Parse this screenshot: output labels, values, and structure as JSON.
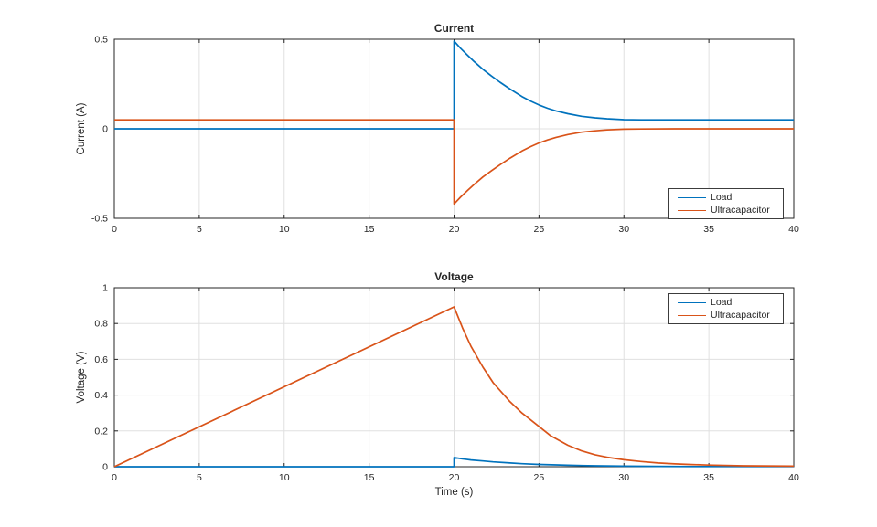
{
  "figure": {
    "background": "#ffffff"
  },
  "colors": {
    "load": "#0072BD",
    "ultracapacitor": "#D95319",
    "grid": "#e0e0e0",
    "axis": "#262626",
    "text": "#262626",
    "legend_border": "#3c3c3c"
  },
  "legend_labels": {
    "load": "Load",
    "ultracapacitor": "Ultracapacitor"
  },
  "xlabel": "Time (s)",
  "chart_data": [
    {
      "type": "line",
      "title": "Current",
      "xlabel": "",
      "ylabel": "Current (A)",
      "xlim": [
        0,
        40
      ],
      "ylim": [
        -0.5,
        0.5
      ],
      "xticks": [
        0,
        5,
        10,
        15,
        20,
        25,
        30,
        35,
        40
      ],
      "xtick_labels": [
        "0",
        "5",
        "10",
        "15",
        "20",
        "25",
        "30",
        "35",
        "40"
      ],
      "yticks": [
        -0.5,
        0,
        0.5
      ],
      "ytick_labels": [
        "-0.5",
        "0",
        "0.5"
      ],
      "grid": true,
      "legend_position": "bottom-right",
      "series": [
        {
          "name": "Load",
          "color": "#0072BD",
          "points": [
            [
              0,
              0
            ],
            [
              20,
              0
            ],
            [
              20,
              0.49
            ],
            [
              20.4,
              0.448
            ],
            [
              20.8,
              0.41
            ],
            [
              21.2,
              0.374
            ],
            [
              21.7,
              0.332
            ],
            [
              22.2,
              0.295
            ],
            [
              22.7,
              0.26
            ],
            [
              23.3,
              0.222
            ],
            [
              24,
              0.18
            ],
            [
              24.5,
              0.155
            ],
            [
              25,
              0.133
            ],
            [
              25.5,
              0.115
            ],
            [
              26,
              0.1
            ],
            [
              26.7,
              0.084
            ],
            [
              27.5,
              0.07
            ],
            [
              28.3,
              0.061
            ],
            [
              29,
              0.056
            ],
            [
              30,
              0.051
            ],
            [
              31,
              0.05
            ],
            [
              33,
              0.05
            ],
            [
              40,
              0.05
            ]
          ]
        },
        {
          "name": "Ultracapacitor",
          "color": "#D95319",
          "points": [
            [
              0,
              0.05
            ],
            [
              20,
              0.05
            ],
            [
              20,
              -0.42
            ],
            [
              20.4,
              -0.38
            ],
            [
              20.8,
              -0.344
            ],
            [
              21.2,
              -0.309
            ],
            [
              21.7,
              -0.269
            ],
            [
              22.2,
              -0.234
            ],
            [
              22.7,
              -0.201
            ],
            [
              23.3,
              -0.164
            ],
            [
              24,
              -0.124
            ],
            [
              24.5,
              -0.1
            ],
            [
              25,
              -0.079
            ],
            [
              25.5,
              -0.062
            ],
            [
              26,
              -0.048
            ],
            [
              26.7,
              -0.032
            ],
            [
              27.5,
              -0.019
            ],
            [
              28.3,
              -0.011
            ],
            [
              29,
              -0.006
            ],
            [
              30,
              -0.002
            ],
            [
              31,
              -0.001
            ],
            [
              33,
              0
            ],
            [
              40,
              0
            ]
          ]
        }
      ]
    },
    {
      "type": "line",
      "title": "Voltage",
      "xlabel": "Time (s)",
      "ylabel": "Voltage (V)",
      "xlim": [
        0,
        40
      ],
      "ylim": [
        0,
        1
      ],
      "xticks": [
        0,
        5,
        10,
        15,
        20,
        25,
        30,
        35,
        40
      ],
      "xtick_labels": [
        "0",
        "5",
        "10",
        "15",
        "20",
        "25",
        "30",
        "35",
        "40"
      ],
      "yticks": [
        0,
        0.2,
        0.4,
        0.6,
        0.8,
        1
      ],
      "ytick_labels": [
        "0",
        "0.2",
        "0.4",
        "0.6",
        "0.8",
        "1"
      ],
      "grid": true,
      "legend_position": "top-right",
      "series": [
        {
          "name": "Load",
          "color": "#0072BD",
          "points": [
            [
              0,
              0
            ],
            [
              20,
              0
            ],
            [
              20,
              0.051
            ],
            [
              20.5,
              0.044
            ],
            [
              21,
              0.038
            ],
            [
              21.7,
              0.032
            ],
            [
              22.3,
              0.027
            ],
            [
              23.3,
              0.021
            ],
            [
              24,
              0.017
            ],
            [
              25,
              0.013
            ],
            [
              26,
              0.01
            ],
            [
              26.7,
              0.008
            ],
            [
              28.3,
              0.005
            ],
            [
              30,
              0.003
            ],
            [
              32,
              0.002
            ],
            [
              34,
              0.001
            ],
            [
              37,
              0.001
            ],
            [
              40,
              0.001
            ]
          ]
        },
        {
          "name": "Ultracapacitor",
          "color": "#D95319",
          "points": [
            [
              0,
              0
            ],
            [
              20,
              0.893
            ],
            [
              20.5,
              0.775
            ],
            [
              21,
              0.672
            ],
            [
              21.7,
              0.556
            ],
            [
              22.3,
              0.47
            ],
            [
              23.3,
              0.363
            ],
            [
              24,
              0.3
            ],
            [
              24.5,
              0.262
            ],
            [
              25,
              0.225
            ],
            [
              25.7,
              0.172
            ],
            [
              26.7,
              0.12
            ],
            [
              27.5,
              0.089
            ],
            [
              28.3,
              0.067
            ],
            [
              29,
              0.053
            ],
            [
              30,
              0.039
            ],
            [
              31,
              0.029
            ],
            [
              32,
              0.021
            ],
            [
              33,
              0.016
            ],
            [
              34,
              0.012
            ],
            [
              35,
              0.009
            ],
            [
              37,
              0.005
            ],
            [
              40,
              0.003
            ]
          ]
        }
      ]
    }
  ]
}
